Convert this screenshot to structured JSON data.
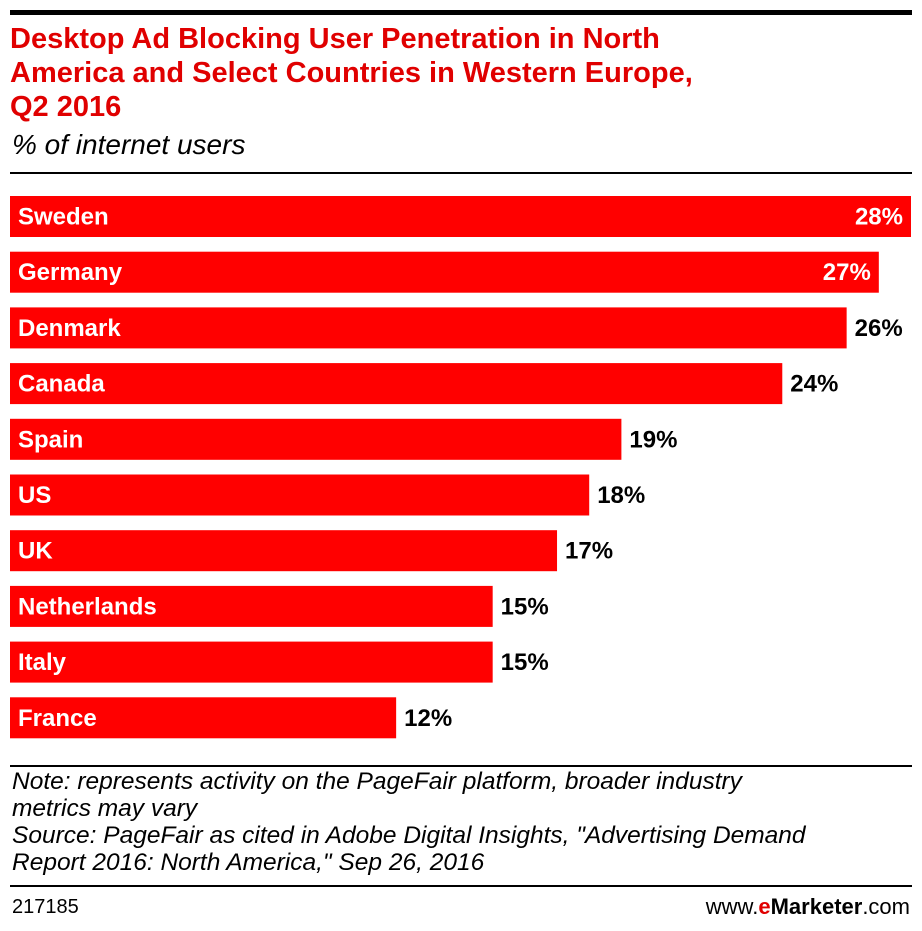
{
  "chart_data": {
    "type": "bar",
    "orientation": "horizontal",
    "title": "Desktop Ad Blocking User Penetration in North America and Select Countries in Western Europe, Q2 2016",
    "title_lines": [
      "Desktop Ad Blocking User Penetration in North",
      "America and Select Countries in Western Europe,",
      "Q2 2016"
    ],
    "subtitle": "% of internet users",
    "categories": [
      "Sweden",
      "Germany",
      "Denmark",
      "Canada",
      "Spain",
      "US",
      "UK",
      "Netherlands",
      "Italy",
      "France"
    ],
    "values": [
      28,
      27,
      26,
      24,
      19,
      18,
      17,
      15,
      15,
      12
    ],
    "value_labels": [
      "28%",
      "27%",
      "26%",
      "24%",
      "19%",
      "18%",
      "17%",
      "15%",
      "15%",
      "12%"
    ],
    "xlim": [
      0,
      28
    ],
    "xlabel": "",
    "ylabel": "",
    "bar_color": "#ff0000"
  },
  "notes": {
    "lines": [
      "Note: represents activity on the PageFair platform, broader industry",
      "metrics may vary",
      "Source: PageFair as cited in Adobe Digital Insights, \"Advertising Demand",
      "Report 2016: North America,\" Sep 26, 2016"
    ]
  },
  "footer": {
    "chart_id": "217185",
    "brand_prefix": "www.",
    "brand_e": "e",
    "brand_name": "Marketer",
    "brand_suffix": ".com"
  },
  "colors": {
    "accent": "#e00000",
    "bar": "#ff0000",
    "text": "#000000"
  }
}
